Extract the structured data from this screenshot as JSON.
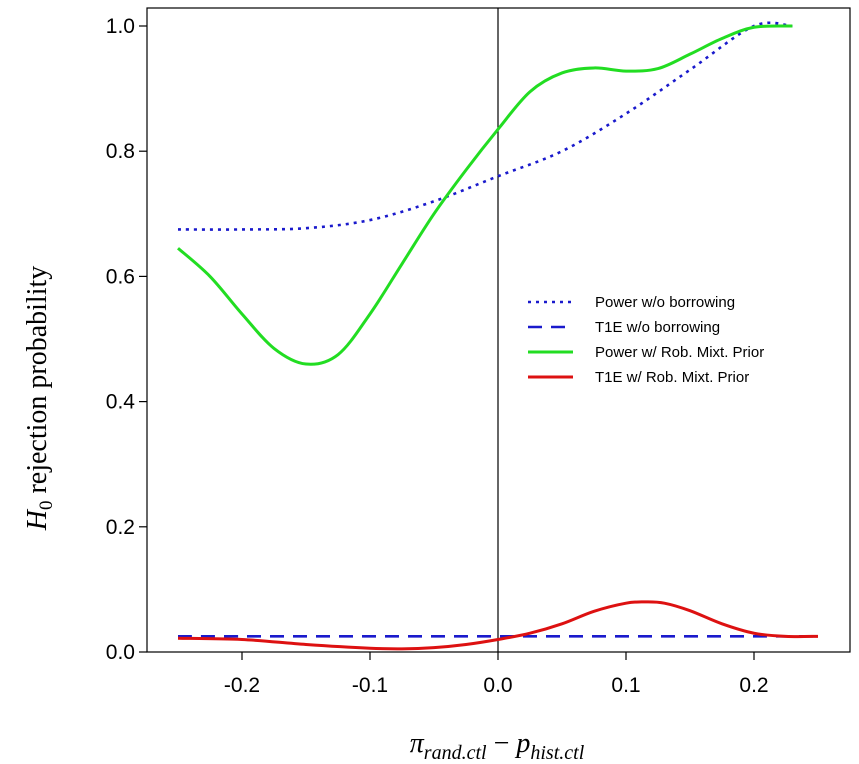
{
  "chart_data": {
    "type": "line",
    "ylabel": {
      "main": "H",
      "sub": "0",
      "rest": " rejection probability"
    },
    "xlabel": {
      "pi": "π",
      "pi_sub": "rand.ctl",
      "minus": " − ",
      "p": "p",
      "p_sub": "hist.ctl"
    },
    "xlim": [
      -0.25,
      0.25
    ],
    "ylim": [
      0.0,
      1.0
    ],
    "x_ticks": [
      -0.2,
      -0.1,
      0.0,
      0.1,
      0.2
    ],
    "x_tick_labels": [
      "-0.2",
      "-0.1",
      "0.0",
      "0.1",
      "0.2"
    ],
    "y_ticks": [
      0.0,
      0.2,
      0.4,
      0.6,
      0.8,
      1.0
    ],
    "y_tick_labels": [
      "0.0",
      "0.2",
      "0.4",
      "0.6",
      "0.8",
      "1.0"
    ],
    "reference_line_x": 0.0,
    "legend_position": "right",
    "series": [
      {
        "name": "Power w/o borrowing",
        "color": "#1a1acc",
        "style": "dotted",
        "x": [
          -0.25,
          -0.2,
          -0.15,
          -0.1,
          -0.05,
          0.0,
          0.05,
          0.1,
          0.15,
          0.2,
          0.23
        ],
        "y": [
          0.675,
          0.675,
          0.677,
          0.69,
          0.72,
          0.76,
          0.8,
          0.86,
          0.93,
          1.0,
          1.0
        ]
      },
      {
        "name": "T1E w/o borrowing",
        "color": "#1a1acc",
        "style": "dashed",
        "x": [
          -0.25,
          -0.2,
          -0.15,
          -0.1,
          -0.05,
          0.0,
          0.05,
          0.1,
          0.15,
          0.2,
          0.25
        ],
        "y": [
          0.025,
          0.025,
          0.025,
          0.025,
          0.025,
          0.025,
          0.025,
          0.025,
          0.025,
          0.025,
          0.025
        ]
      },
      {
        "name": "Power w/ Rob. Mixt. Prior",
        "color": "#22dd22",
        "style": "solid",
        "x": [
          -0.25,
          -0.225,
          -0.2,
          -0.175,
          -0.15,
          -0.125,
          -0.1,
          -0.075,
          -0.05,
          -0.025,
          0.0,
          0.025,
          0.05,
          0.075,
          0.1,
          0.125,
          0.15,
          0.175,
          0.2,
          0.23
        ],
        "y": [
          0.645,
          0.6,
          0.54,
          0.485,
          0.46,
          0.475,
          0.54,
          0.62,
          0.7,
          0.77,
          0.835,
          0.895,
          0.925,
          0.933,
          0.928,
          0.932,
          0.955,
          0.98,
          0.998,
          1.0
        ]
      },
      {
        "name": "T1E w/ Rob. Mixt. Prior",
        "color": "#dd1111",
        "style": "solid",
        "x": [
          -0.25,
          -0.2,
          -0.15,
          -0.1,
          -0.075,
          -0.05,
          -0.025,
          0.0,
          0.025,
          0.05,
          0.075,
          0.1,
          0.115,
          0.13,
          0.15,
          0.175,
          0.2,
          0.225,
          0.25
        ],
        "y": [
          0.022,
          0.02,
          0.012,
          0.006,
          0.005,
          0.007,
          0.012,
          0.02,
          0.03,
          0.045,
          0.065,
          0.078,
          0.08,
          0.078,
          0.066,
          0.045,
          0.03,
          0.025,
          0.025
        ]
      }
    ]
  }
}
